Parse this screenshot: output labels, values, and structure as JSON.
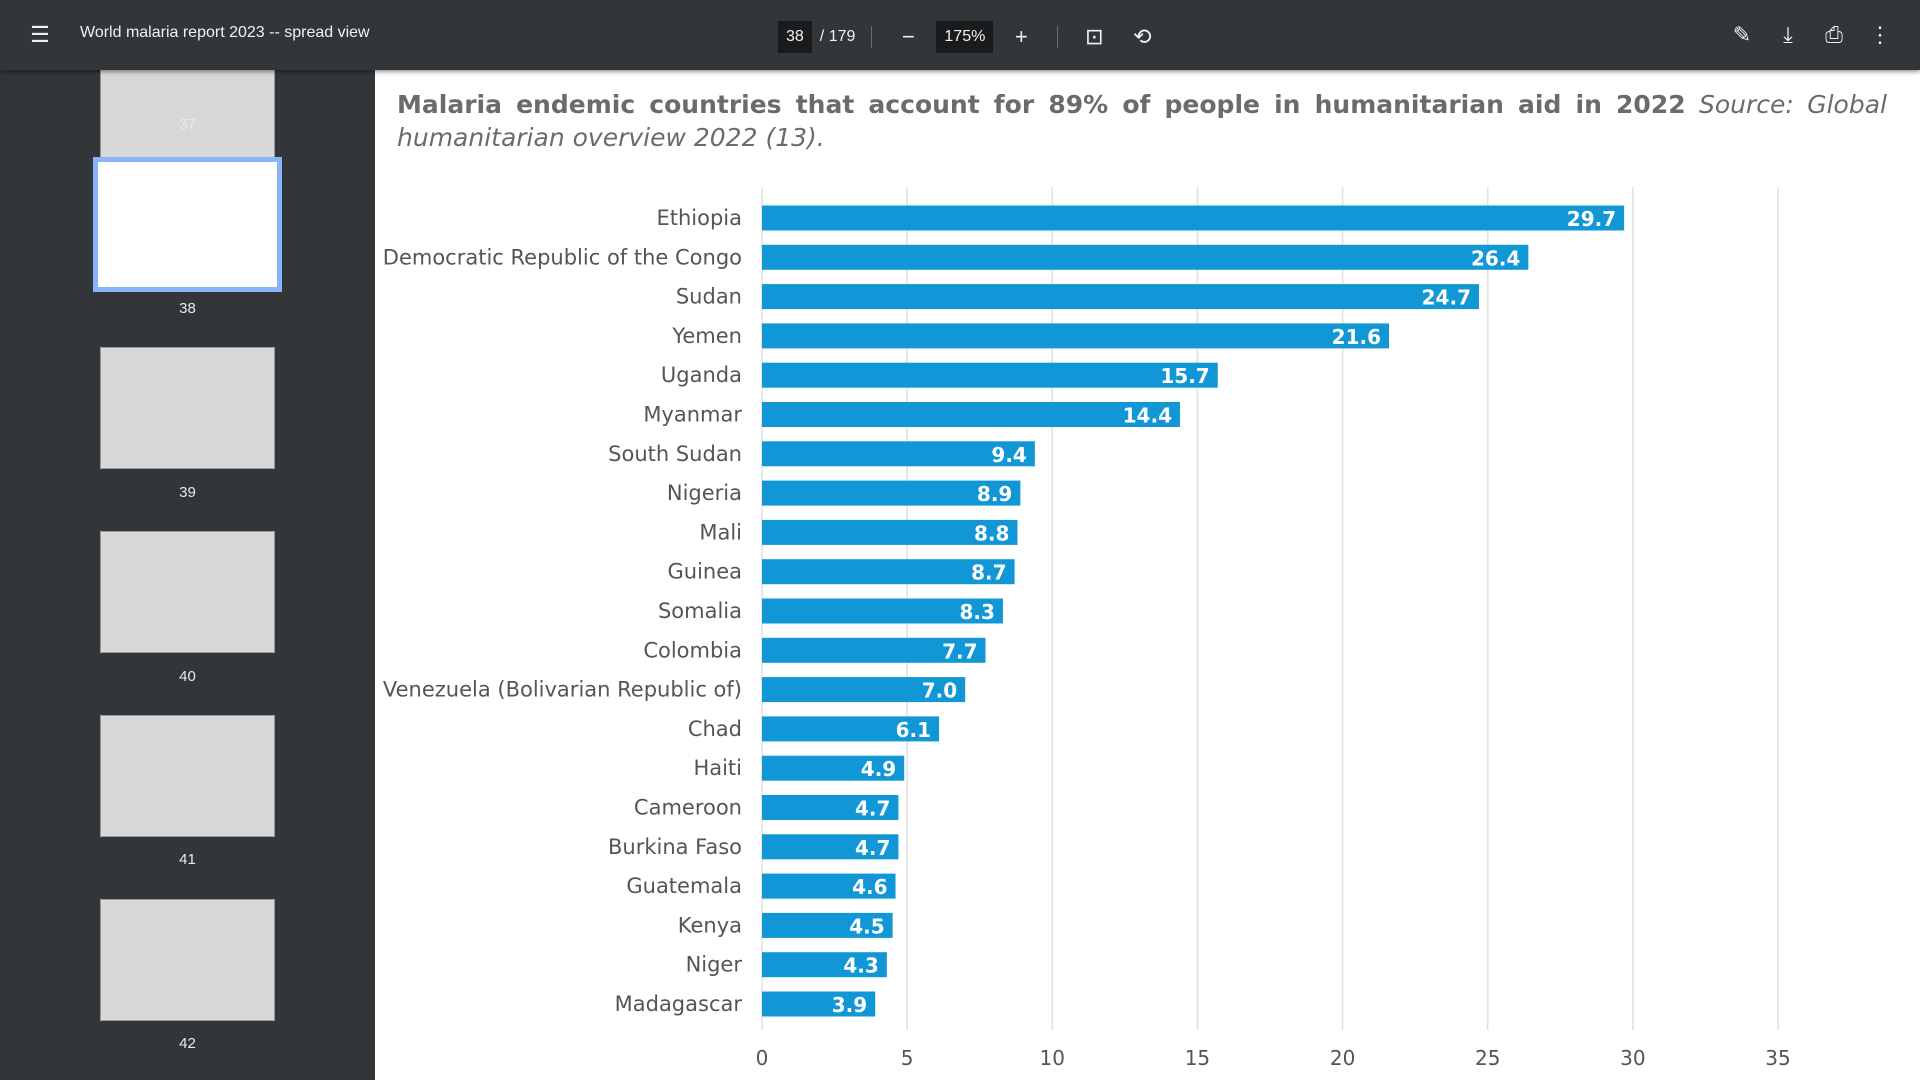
{
  "toolbar": {
    "title": "World malaria report 2023 -- spread view",
    "page_current": "38",
    "page_total": "/ 179",
    "zoom": "175%"
  },
  "sidebar": {
    "pages": [
      "37",
      "38",
      "39",
      "40",
      "41",
      "42"
    ],
    "selected": "38"
  },
  "chart_data": {
    "type": "bar",
    "orientation": "horizontal",
    "title": "Malaria endemic countries that account for 89% of people in humanitarian aid in 2022",
    "source": "Source: Global humanitarian overview 2022 (13).",
    "categories": [
      "Ethiopia",
      "Democratic Republic of the Congo",
      "Sudan",
      "Yemen",
      "Uganda",
      "Myanmar",
      "South Sudan",
      "Nigeria",
      "Mali",
      "Guinea",
      "Somalia",
      "Colombia",
      "Venezuela (Bolivarian Republic of)",
      "Chad",
      "Haiti",
      "Cameroon",
      "Burkina Faso",
      "Guatemala",
      "Kenya",
      "Niger",
      "Madagascar"
    ],
    "values": [
      29.7,
      26.4,
      24.7,
      21.6,
      15.7,
      14.4,
      9.4,
      8.9,
      8.8,
      8.7,
      8.3,
      7.7,
      7.0,
      6.1,
      4.9,
      4.7,
      4.7,
      4.6,
      4.5,
      4.3,
      3.9
    ],
    "value_labels": [
      "29.7",
      "26.4",
      "24.7",
      "21.6",
      "15.7",
      "14.4",
      "9.4",
      "8.9",
      "8.8",
      "8.7",
      "8.3",
      "7.7",
      "7.0",
      "6.1",
      "4.9",
      "4.7",
      "4.7",
      "4.6",
      "4.5",
      "4.3",
      "3.9"
    ],
    "xticks": [
      "0",
      "5",
      "10",
      "15",
      "20",
      "25",
      "30",
      "35"
    ],
    "xlim": [
      0,
      35
    ],
    "grid": true,
    "bar_color": "#1197d6"
  }
}
